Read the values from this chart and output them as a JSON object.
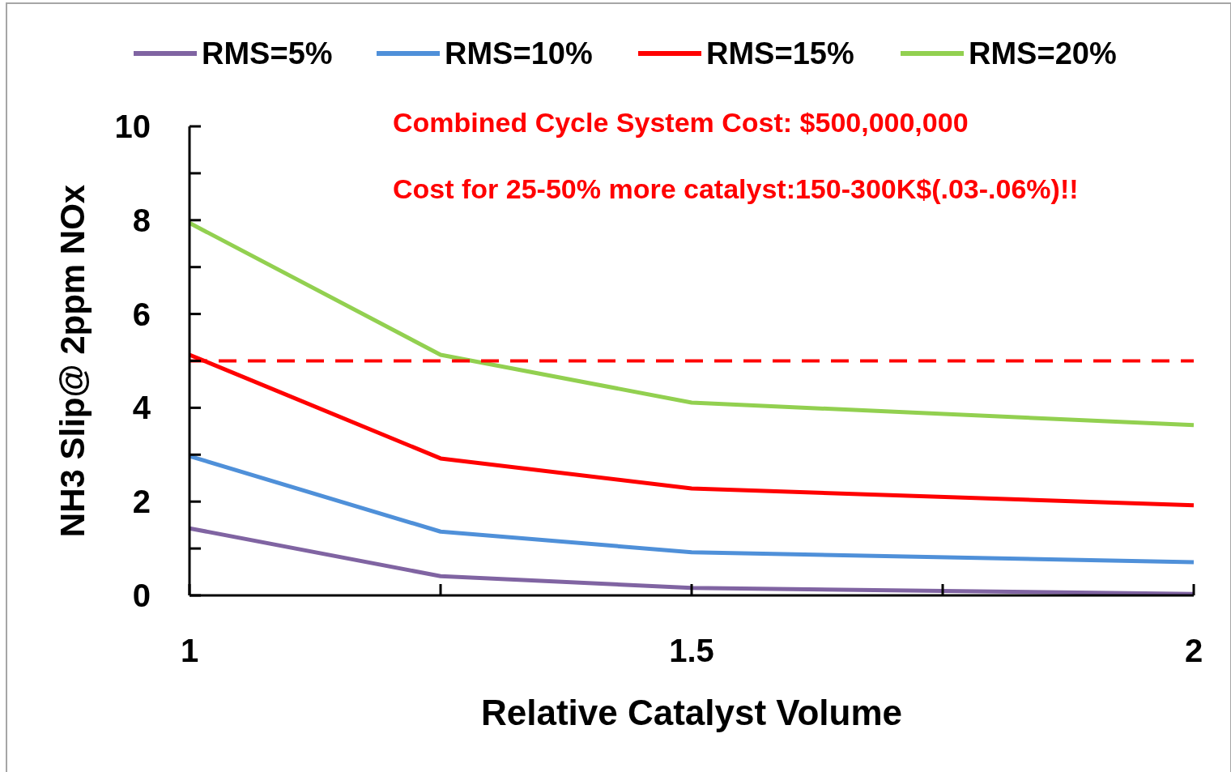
{
  "chart_data": {
    "type": "line",
    "xlabel": "Relative Catalyst Volume",
    "ylabel": "NH3 Slip@ 2ppm NOx",
    "annotations": [
      "Combined Cycle System Cost: $500,000,000",
      "Cost for 25-50% more catalyst:150-300K$(.03-.06%)!!"
    ],
    "x": [
      1,
      1.25,
      1.5,
      2
    ],
    "series": [
      {
        "name": "RMS=5%",
        "color": "#8064a2",
        "values": [
          1.43,
          0.41,
          0.16,
          0.03
        ]
      },
      {
        "name": "RMS=10%",
        "color": "#4f90d9",
        "values": [
          2.97,
          1.36,
          0.92,
          0.71
        ]
      },
      {
        "name": "RMS=15%",
        "color": "#ff0000",
        "values": [
          5.13,
          2.92,
          2.28,
          1.92
        ]
      },
      {
        "name": "RMS=20%",
        "color": "#92d050",
        "values": [
          7.94,
          5.13,
          4.11,
          3.63
        ]
      }
    ],
    "xlim": [
      1,
      2
    ],
    "xticks": [
      1,
      {
        "value": 1.25,
        "label": null
      },
      1.5,
      {
        "value": 1.75,
        "label": null
      },
      2
    ],
    "ylim": [
      0,
      10
    ],
    "yticks": [
      0,
      {
        "value": 1,
        "label": null
      },
      2,
      {
        "value": 3,
        "label": null
      },
      4,
      {
        "value": 5,
        "label": null
      },
      6,
      {
        "value": 7,
        "label": null
      },
      8,
      {
        "value": 9,
        "label": null
      },
      10
    ],
    "ref_lines": [
      {
        "axis": "y",
        "value": 5,
        "color": "#ff0000",
        "line_style": "dashed"
      }
    ],
    "legend": "top",
    "grid": false,
    "marker": "none",
    "line_style": "solid"
  }
}
